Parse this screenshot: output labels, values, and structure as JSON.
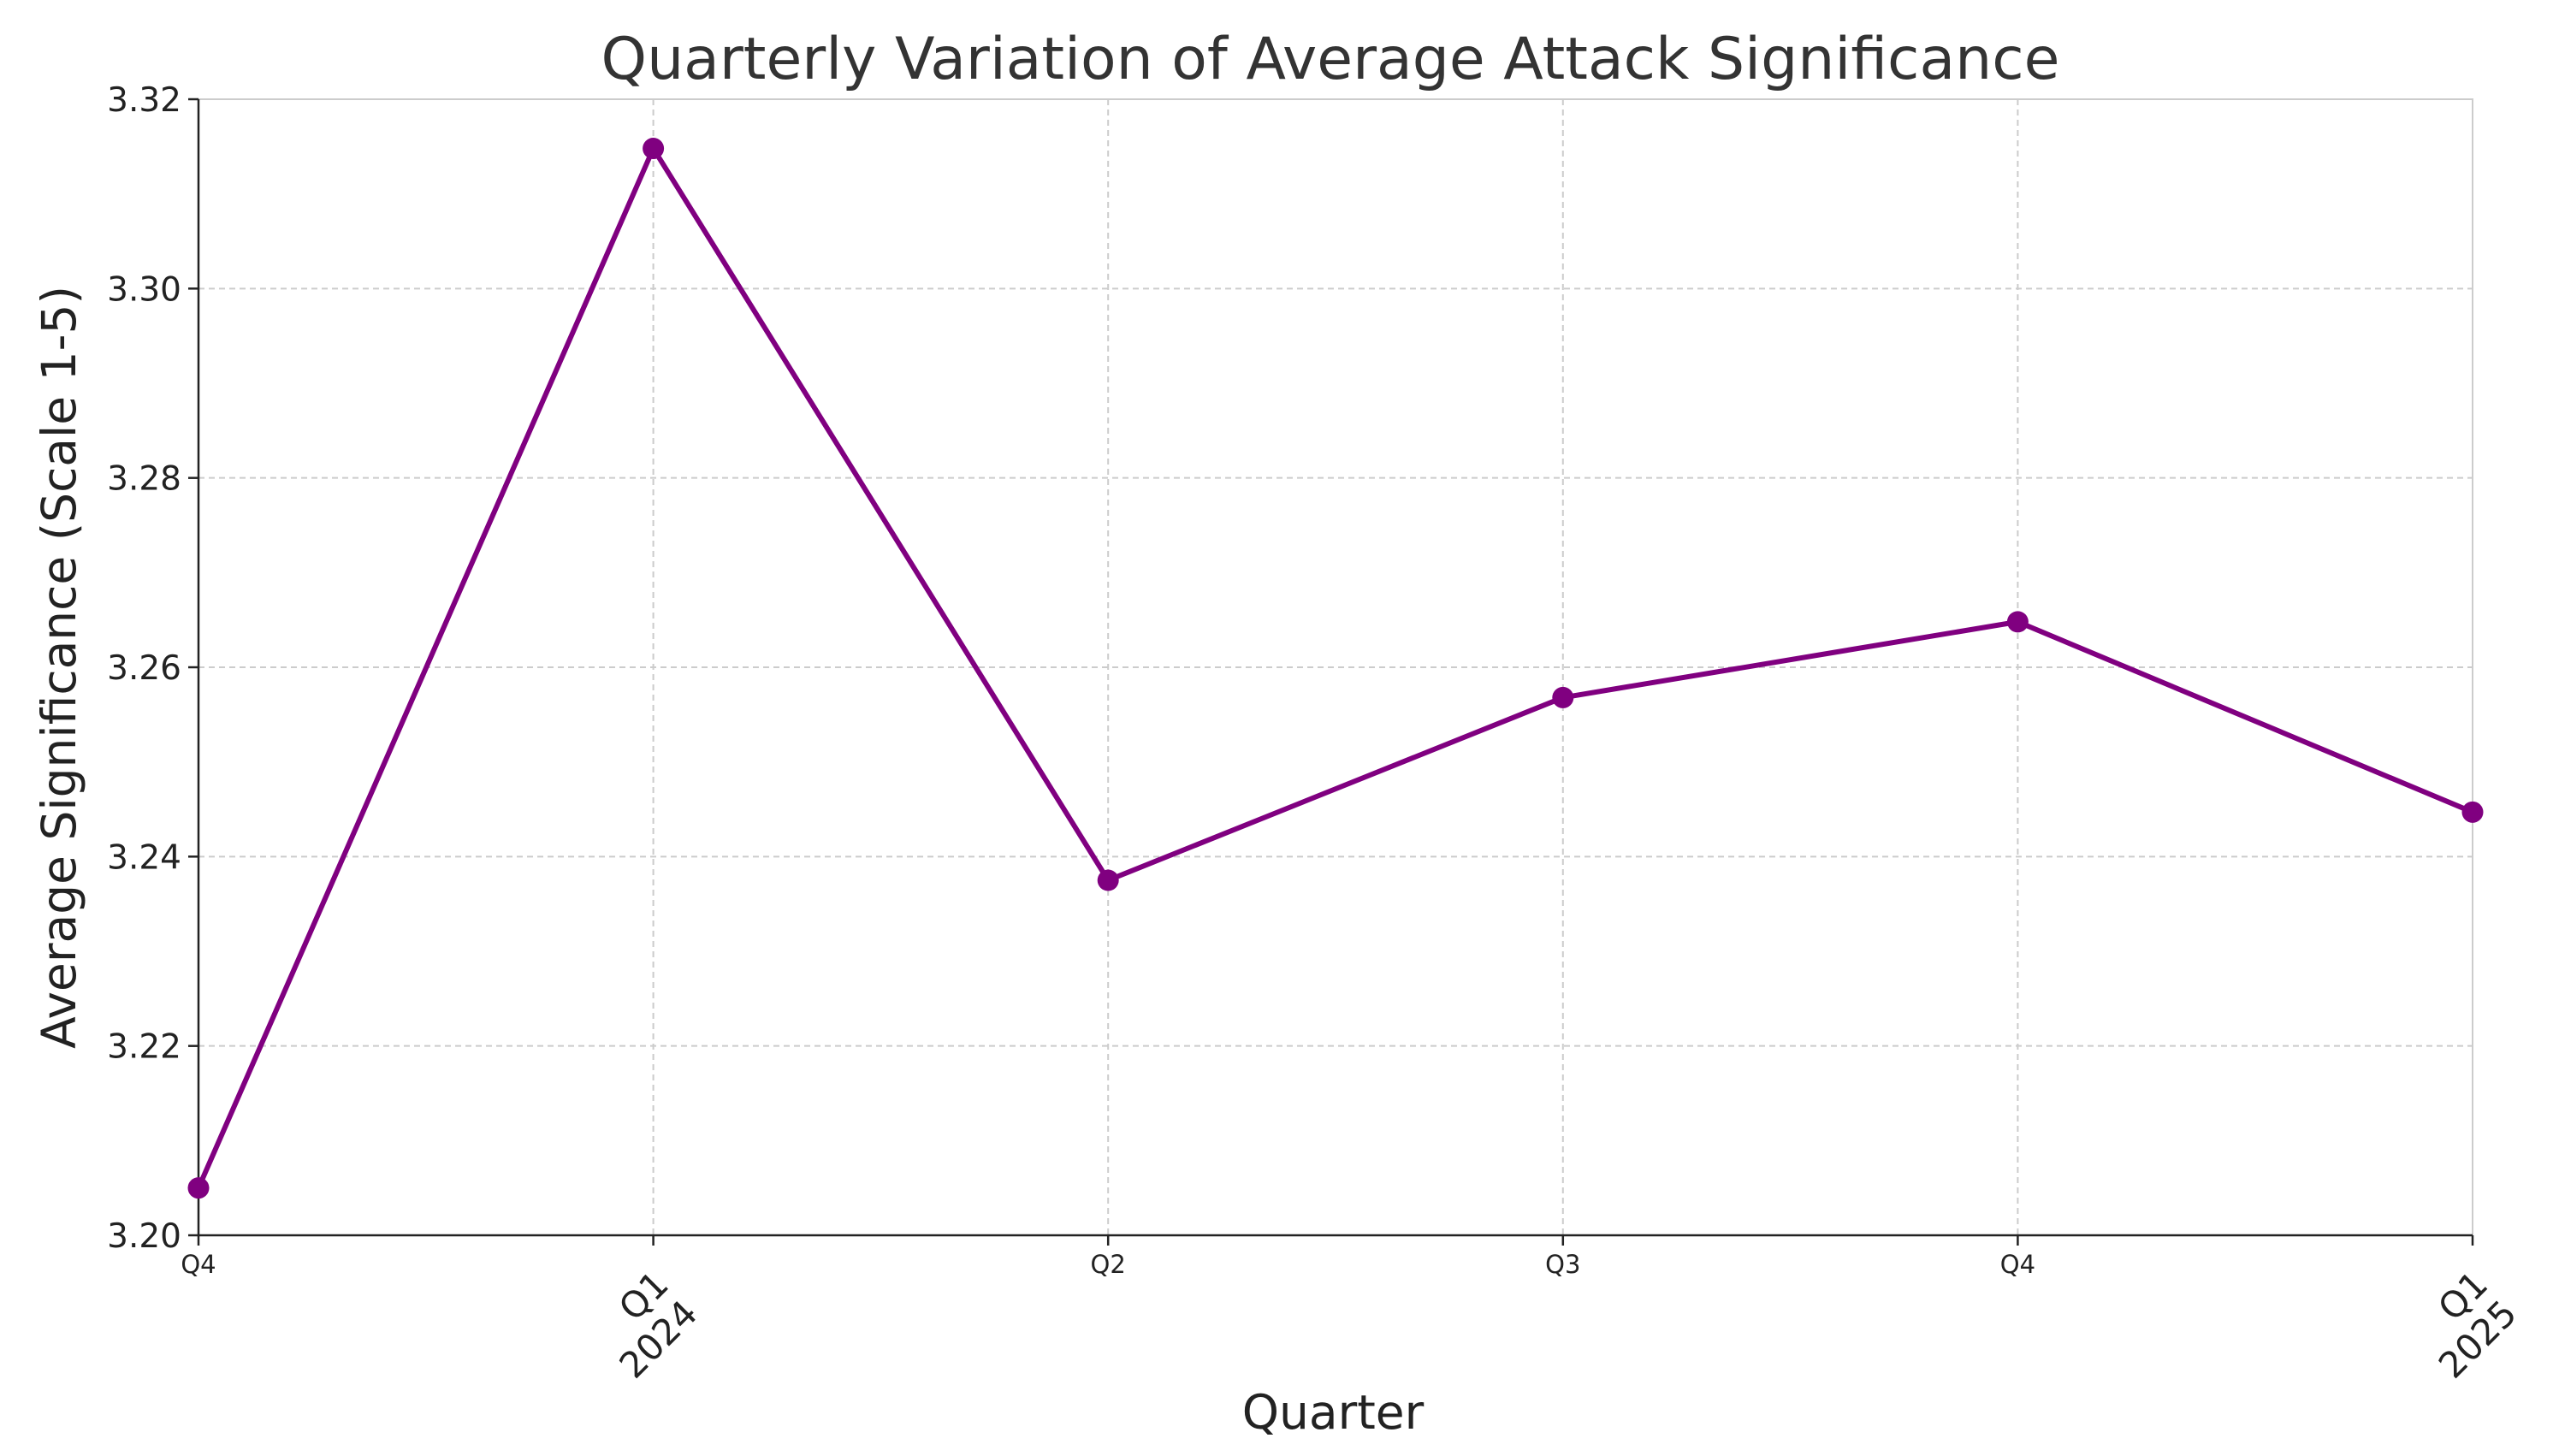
{
  "chart_data": {
    "type": "line",
    "title": "Quarterly Variation of Average Attack Significance",
    "xlabel": "Quarter",
    "ylabel": "Average Significance (Scale 1-5)",
    "categories": [
      {
        "label": "Q4",
        "year": ""
      },
      {
        "label": "Q1",
        "year": "2024"
      },
      {
        "label": "Q2",
        "year": ""
      },
      {
        "label": "Q3",
        "year": ""
      },
      {
        "label": "Q4",
        "year": ""
      },
      {
        "label": "Q1",
        "year": "2025"
      }
    ],
    "series": [
      {
        "color": "#800080",
        "values": [
          3.205,
          3.3148,
          3.2375,
          3.2568,
          3.2648,
          3.2447
        ]
      }
    ],
    "ylim": [
      3.2,
      3.32
    ],
    "yticks": [
      "3.20",
      "3.22",
      "3.24",
      "3.26",
      "3.28",
      "3.30",
      "3.32"
    ],
    "grid": true,
    "legend": "none"
  }
}
